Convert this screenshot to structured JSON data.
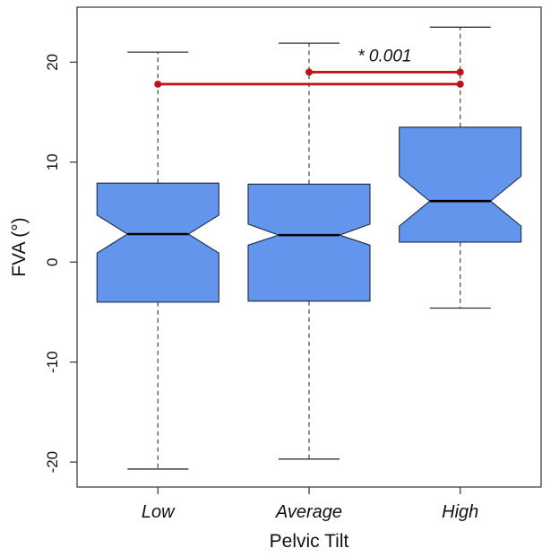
{
  "chart_data": {
    "type": "boxplot",
    "notched": true,
    "xlabel": "Pelvic Tilt",
    "ylabel": "FVA (°)",
    "ylim": [
      -22.5,
      25.5
    ],
    "yticks": [
      -20,
      -10,
      0,
      10,
      20
    ],
    "ytick_labels": [
      "-20",
      "-10",
      "0",
      "10",
      "20"
    ],
    "categories": [
      "Low",
      "Average",
      "High"
    ],
    "boxes": [
      {
        "category": "Low",
        "whisker_low": -20.7,
        "q1": -4.0,
        "median": 2.8,
        "q3": 7.9,
        "whisker_high": 21.0,
        "notch_low": 0.9,
        "notch_high": 4.7
      },
      {
        "category": "Average",
        "whisker_low": -19.7,
        "q1": -3.9,
        "median": 2.7,
        "q3": 7.8,
        "whisker_high": 21.9,
        "notch_low": 1.7,
        "notch_high": 3.8
      },
      {
        "category": "High",
        "whisker_low": -4.6,
        "q1": 2.0,
        "median": 6.1,
        "q3": 13.5,
        "whisker_high": 23.5,
        "notch_low": 3.6,
        "notch_high": 8.6
      }
    ],
    "significance": [
      {
        "from": "Average",
        "to": "High",
        "y": 19.0,
        "label": "* 0.001"
      },
      {
        "from": "Low",
        "to": "High",
        "y": 17.8,
        "label": ""
      }
    ],
    "colors": {
      "box_fill": "#6495ED",
      "significance": "#C0141B"
    }
  }
}
